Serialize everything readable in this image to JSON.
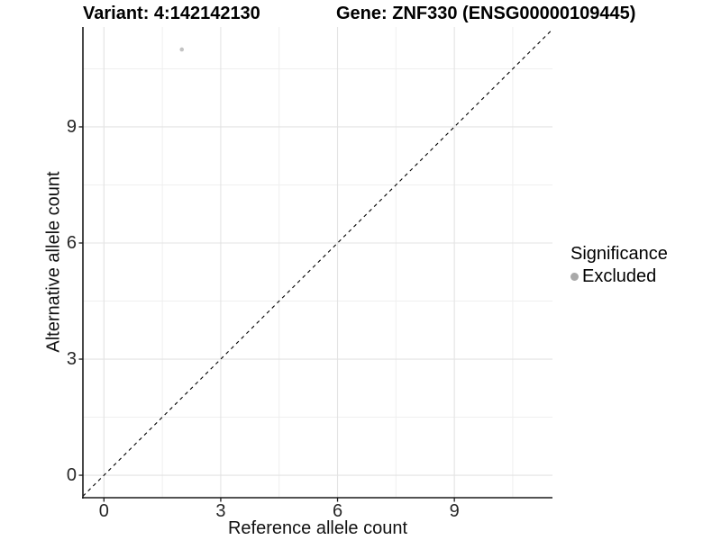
{
  "title": {
    "variant": "Variant: 4:142142130",
    "gene": "Gene: ZNF330 (ENSG00000109445)"
  },
  "axes": {
    "x_label": "Reference allele count",
    "y_label": "Alternative allele count"
  },
  "legend": {
    "title": "Significance",
    "items": [
      {
        "label": "Excluded",
        "color": "#a9a9a9"
      }
    ]
  },
  "chart_data": {
    "type": "scatter",
    "title": "Variant: 4:142142130 — Gene: ZNF330 (ENSG00000109445)",
    "xlabel": "Reference allele count",
    "ylabel": "Alternative allele count",
    "xlim": [
      -0.54,
      11.52
    ],
    "ylim": [
      -0.58,
      11.58
    ],
    "x_ticks": [
      0,
      3,
      6,
      9
    ],
    "y_ticks": [
      0,
      3,
      6,
      9
    ],
    "x_minor_ticks": [
      1.5,
      4.5,
      7.5,
      10.5
    ],
    "y_minor_ticks": [
      1.5,
      4.5,
      7.5,
      10.5
    ],
    "grid": true,
    "legend_position": "right",
    "series": [
      {
        "name": "Excluded",
        "color": "#c3c3c3",
        "points": [
          {
            "x": 2,
            "y": 11
          }
        ]
      }
    ],
    "reference_line": {
      "type": "identity",
      "equation": "y = x",
      "style": "dashed",
      "color": "#000000"
    },
    "style": {
      "grid_major_color": "#e3e3e3",
      "grid_minor_color": "#efefef",
      "axis_color": "#1a1a1a",
      "tick_label_color": "#262626",
      "background": "#ffffff"
    }
  }
}
